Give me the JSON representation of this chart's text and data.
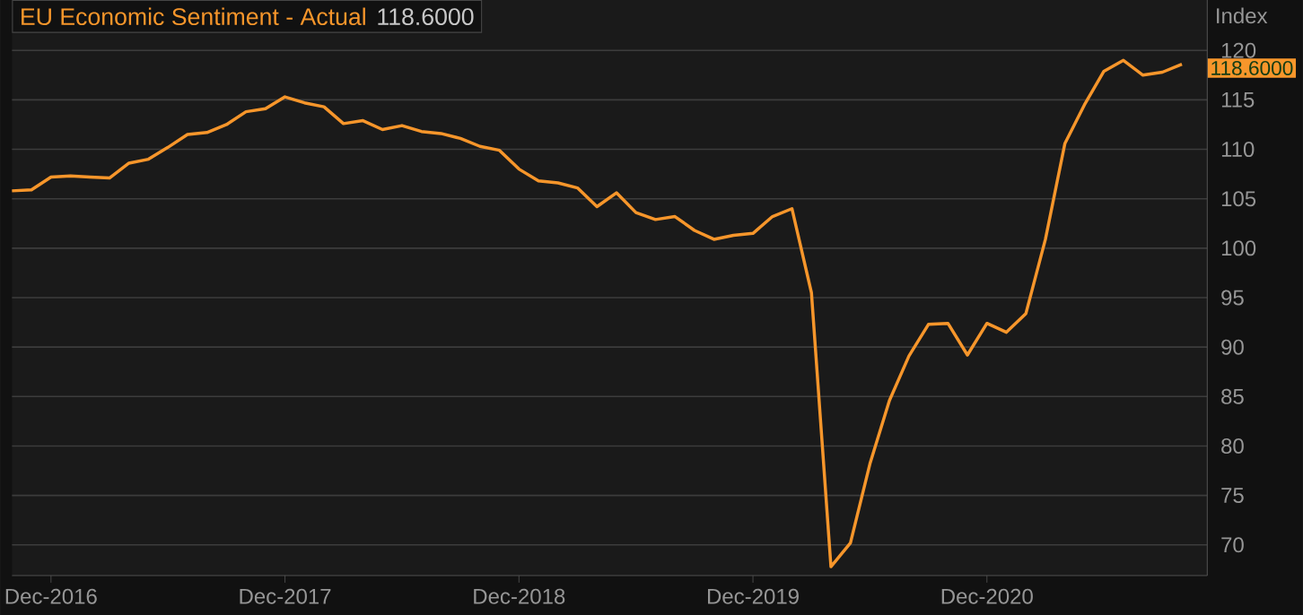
{
  "chart_data": {
    "type": "line",
    "title": "EU Economic Sentiment - Actual",
    "subtitle": "118.6000",
    "ylabel": "Index",
    "x": [
      "2016-10",
      "2016-11",
      "2016-12",
      "2017-01",
      "2017-02",
      "2017-03",
      "2017-04",
      "2017-05",
      "2017-06",
      "2017-07",
      "2017-08",
      "2017-09",
      "2017-10",
      "2017-11",
      "2017-12",
      "2018-01",
      "2018-02",
      "2018-03",
      "2018-04",
      "2018-05",
      "2018-06",
      "2018-07",
      "2018-08",
      "2018-09",
      "2018-10",
      "2018-11",
      "2018-12",
      "2019-01",
      "2019-02",
      "2019-03",
      "2019-04",
      "2019-05",
      "2019-06",
      "2019-07",
      "2019-08",
      "2019-09",
      "2019-10",
      "2019-11",
      "2019-12",
      "2020-01",
      "2020-02",
      "2020-03",
      "2020-04",
      "2020-05",
      "2020-06",
      "2020-07",
      "2020-08",
      "2020-09",
      "2020-10",
      "2020-11",
      "2020-12",
      "2021-01",
      "2021-02",
      "2021-03",
      "2021-04",
      "2021-05",
      "2021-06",
      "2021-07",
      "2021-08",
      "2021-09",
      "2021-10"
    ],
    "series": [
      {
        "color": "#f7962b",
        "values": [
          105.8,
          105.9,
          107.2,
          107.3,
          107.2,
          107.1,
          108.6,
          109.0,
          110.2,
          111.5,
          111.7,
          112.5,
          113.8,
          114.1,
          115.3,
          114.7,
          114.3,
          112.6,
          112.9,
          112.0,
          112.4,
          111.8,
          111.6,
          111.1,
          110.3,
          109.9,
          108.0,
          106.8,
          106.6,
          106.1,
          104.2,
          105.6,
          103.6,
          102.9,
          103.2,
          101.8,
          100.9,
          101.3,
          101.5,
          103.2,
          104.0,
          95.5,
          67.8,
          70.2,
          78.2,
          84.6,
          89.1,
          92.3,
          92.4,
          89.2,
          92.4,
          91.5,
          93.4,
          100.9,
          110.6,
          114.5,
          117.9,
          119.0,
          117.5,
          117.8,
          118.6
        ]
      }
    ],
    "xlim": [
      "2016-10",
      "2021-11-10"
    ],
    "xticks": [
      {
        "value": "2016-12",
        "label": "Dec-2016"
      },
      {
        "value": "2017-12",
        "label": "Dec-2017"
      },
      {
        "value": "2018-12",
        "label": "Dec-2018"
      },
      {
        "value": "2019-12",
        "label": "Dec-2019"
      },
      {
        "value": "2020-12",
        "label": "Dec-2020"
      }
    ],
    "ylim": [
      66.9,
      125.1
    ],
    "yticks": [
      70,
      75,
      80,
      85,
      90,
      95,
      100,
      105,
      110,
      115,
      120
    ],
    "grid": "y",
    "marker": "none",
    "line_style": "solid",
    "annotations": [
      {
        "text": "118.6000",
        "x": "2021-10",
        "y": 118.6
      }
    ]
  }
}
